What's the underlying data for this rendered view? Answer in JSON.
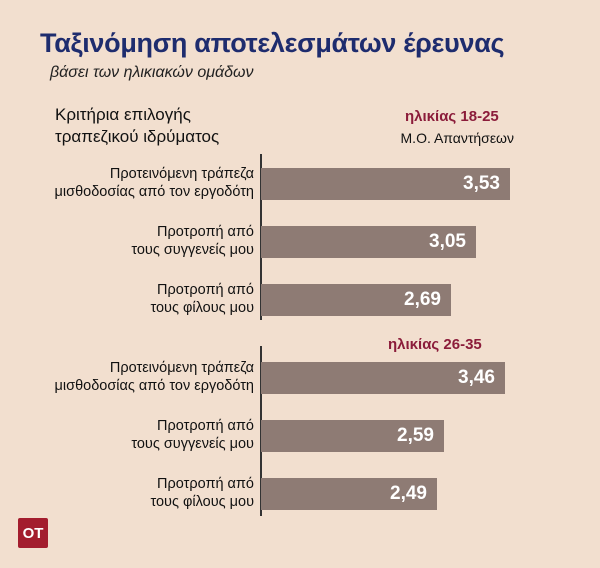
{
  "header": {
    "title": "Ταξινόμηση αποτελεσμάτων έρευνας",
    "subtitle": "βάσει των ηλικιακών ομάδων"
  },
  "column_title": "Κριτήρια επιλογής τραπεζικού ιδρύματος",
  "measure_label": "Μ.Ο. Απαντήσεων",
  "logo_text": "ΟΤ",
  "colors": {
    "bar": "#8e7b74",
    "group_label": "#8b1c3a",
    "title": "#1e2c6e",
    "background": "#f2dfcf"
  },
  "chart_data": {
    "type": "bar",
    "orientation": "horizontal",
    "groups": [
      {
        "name": "ηλικίας 18-25",
        "categories": [
          "Προτεινόμενη τράπεζα μισθοδοσίας από τον εργοδότη",
          "Προτροπή από τους συγγενείς μου",
          "Προτροπή από τους φίλους μου"
        ],
        "values": [
          3.53,
          3.05,
          2.69
        ],
        "value_labels": [
          "3,53",
          "3,05",
          "2,69"
        ]
      },
      {
        "name": "ηλικίας 26-35",
        "categories": [
          "Προτεινόμενη τράπεζα μισθοδοσίας από τον εργοδότη",
          "Προτροπή από τους συγγενείς μου",
          "Προτροπή από τους φίλους μου"
        ],
        "values": [
          3.46,
          2.59,
          2.49
        ],
        "value_labels": [
          "3,46",
          "2,59",
          "2,49"
        ]
      }
    ],
    "xlim": [
      0,
      5
    ],
    "grid": false
  }
}
